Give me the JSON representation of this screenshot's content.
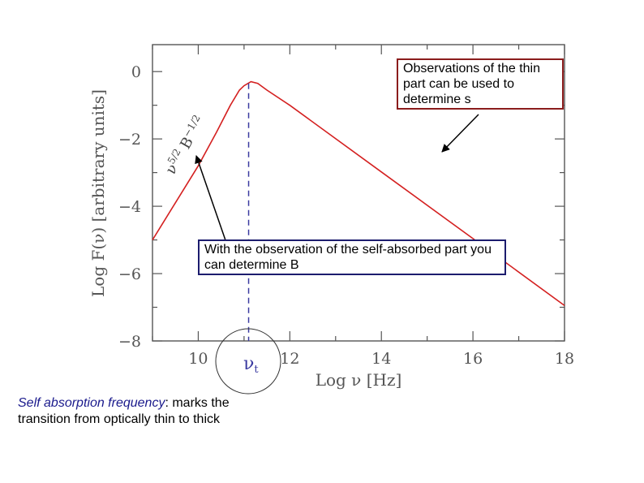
{
  "chart_data": {
    "type": "line",
    "xlabel": "Log ν [Hz]",
    "ylabel": "Log F(ν) [arbitrary units]",
    "xlim": [
      9,
      18
    ],
    "ylim": [
      -8,
      0.8
    ],
    "xticks": [
      10,
      12,
      14,
      16,
      18
    ],
    "yticks": [
      0,
      -2,
      -4,
      -6,
      -8
    ],
    "xtick_labels": [
      "10",
      "12",
      "14",
      "16",
      "18"
    ],
    "ytick_labels": [
      "0",
      "−2",
      "−4",
      "−6",
      "−8"
    ],
    "series": [
      {
        "color": "#d42020",
        "x": [
          9.0,
          9.5,
          10.0,
          10.4,
          10.7,
          10.9,
          11.0,
          11.15,
          11.3,
          11.5,
          12.0,
          14.0,
          16.0,
          18.0
        ],
        "y": [
          -5.0,
          -3.9,
          -2.8,
          -1.8,
          -1.0,
          -0.55,
          -0.42,
          -0.3,
          -0.35,
          -0.55,
          -1.0,
          -2.98,
          -4.96,
          -6.95
        ]
      }
    ],
    "vline": {
      "x": 11.1,
      "color": "#3a3aa0",
      "label": "ν",
      "label_sub": "t"
    },
    "curve_label": {
      "base": "ν",
      "base_sup": "5/2",
      "mid": " B",
      "mid_sup": "−1/2"
    },
    "grid": false
  },
  "annotations": {
    "thin_part": "Observations of the thin part can be used to determine s",
    "self_absorbed": "With the observation of the self-absorbed part you can determine B",
    "caption_term": "Self absorption frequency",
    "caption_rest": ": marks the transition from optically thin to thick"
  },
  "colors": {
    "curve": "#d42020",
    "dashed_line": "#3a3aa0",
    "thin_box_border": "#8b1c1c",
    "abs_box_border": "#1c1c6e",
    "caption_term": "#1a1a8c"
  }
}
